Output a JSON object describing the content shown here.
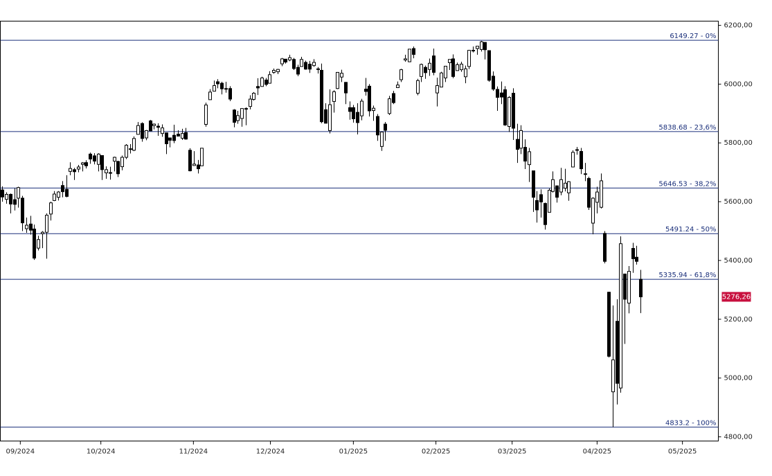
{
  "chart_data": {
    "type": "candlestick",
    "ylim": [
      4785.71,
      6214.29
    ],
    "yticks": [
      {
        "value": 6200,
        "label": "6200,00"
      },
      {
        "value": 6000,
        "label": "6000,00"
      },
      {
        "value": 5800,
        "label": "5800,00"
      },
      {
        "value": 5600,
        "label": "5600,00"
      },
      {
        "value": 5400,
        "label": "5400,00"
      },
      {
        "value": 5200,
        "label": "5200,00"
      },
      {
        "value": 5000,
        "label": "5000,00"
      },
      {
        "value": 4800,
        "label": "4800,00"
      }
    ],
    "xlim": [
      -0.5,
      179.5
    ],
    "xticks": [
      {
        "value": 4.5,
        "label": "09/2024"
      },
      {
        "value": 24.7,
        "label": "10/2024"
      },
      {
        "value": 47.9,
        "label": "11/2024"
      },
      {
        "value": 67.2,
        "label": "12/2024"
      },
      {
        "value": 88.0,
        "label": "01/2025"
      },
      {
        "value": 108.7,
        "label": "02/2025"
      },
      {
        "value": 127.8,
        "label": "03/2025"
      },
      {
        "value": 149.1,
        "label": "04/2025"
      },
      {
        "value": 170.5,
        "label": "05/2025"
      }
    ],
    "levels": [
      {
        "value": 6149.27,
        "label": "6149.27 - 0%"
      },
      {
        "value": 5838.68,
        "label": "5838.68 - 23,6%"
      },
      {
        "value": 5646.53,
        "label": "5646.53 - 38,2%"
      },
      {
        "value": 5491.24,
        "label": "5491.24 - 50%"
      },
      {
        "value": 5335.94,
        "label": "5335.94 - 61,8%"
      },
      {
        "value": 4833.2,
        "label": "4833.2 - 100%"
      }
    ],
    "level_color": "#1a2f7a",
    "up_color": "#ffffff",
    "down_color": "#000000",
    "last_price_color": "#c8103e",
    "last_price_label": "5276,26",
    "ohlc": [
      [
        5640,
        5652,
        5600,
        5616
      ],
      [
        5608,
        5632,
        5593,
        5625
      ],
      [
        5625,
        5628,
        5560,
        5592
      ],
      [
        5607,
        5646,
        5570,
        5591
      ],
      [
        5612,
        5651,
        5580,
        5648
      ],
      [
        5612,
        5620,
        5500,
        5528
      ],
      [
        5508,
        5546,
        5494,
        5520
      ],
      [
        5524,
        5552,
        5488,
        5503
      ],
      [
        5507,
        5522,
        5402,
        5408
      ],
      [
        5442,
        5484,
        5434,
        5471
      ],
      [
        5491,
        5500,
        5442,
        5496
      ],
      [
        5496,
        5560,
        5406,
        5554
      ],
      [
        5558,
        5600,
        5536,
        5596
      ],
      [
        5604,
        5636,
        5602,
        5626
      ],
      [
        5615,
        5636,
        5604,
        5633
      ],
      [
        5655,
        5670,
        5615,
        5634
      ],
      [
        5642,
        5690,
        5615,
        5618
      ],
      [
        5703,
        5734,
        5690,
        5713
      ],
      [
        5709,
        5715,
        5674,
        5702
      ],
      [
        5711,
        5725,
        5700,
        5718
      ],
      [
        5727,
        5735,
        5703,
        5732
      ],
      [
        5733,
        5741,
        5713,
        5722
      ],
      [
        5762,
        5767,
        5729,
        5745
      ],
      [
        5756,
        5765,
        5727,
        5738
      ],
      [
        5727,
        5765,
        5703,
        5762
      ],
      [
        5757,
        5758,
        5674,
        5709
      ],
      [
        5698,
        5720,
        5678,
        5709
      ],
      [
        5698,
        5719,
        5675,
        5699
      ],
      [
        5738,
        5753,
        5703,
        5751
      ],
      [
        5737,
        5739,
        5684,
        5695
      ],
      [
        5719,
        5757,
        5707,
        5751
      ],
      [
        5751,
        5796,
        5745,
        5792
      ],
      [
        5778,
        5796,
        5764,
        5780
      ],
      [
        5775,
        5822,
        5772,
        5815
      ],
      [
        5829,
        5871,
        5829,
        5859
      ],
      [
        5866,
        5870,
        5804,
        5815
      ],
      [
        5817,
        5844,
        5809,
        5842
      ],
      [
        5875,
        5878,
        5840,
        5841
      ],
      [
        5859,
        5866,
        5846,
        5864
      ],
      [
        5857,
        5867,
        5824,
        5853
      ],
      [
        5832,
        5863,
        5821,
        5851
      ],
      [
        5834,
        5835,
        5762,
        5797
      ],
      [
        5817,
        5817,
        5785,
        5809
      ],
      [
        5826,
        5862,
        5799,
        5808
      ],
      [
        5830,
        5843,
        5823,
        5823
      ],
      [
        5816,
        5848,
        5810,
        5832
      ],
      [
        5835,
        5851,
        5811,
        5813
      ],
      [
        5775,
        5782,
        5703,
        5705
      ],
      [
        5723,
        5772,
        5723,
        5728
      ],
      [
        5725,
        5742,
        5696,
        5712
      ],
      [
        5722,
        5783,
        5722,
        5782
      ],
      [
        5863,
        5937,
        5855,
        5929
      ],
      [
        5947,
        5983,
        5947,
        5973
      ],
      [
        5976,
        6012,
        5976,
        5995
      ],
      [
        6008,
        6017,
        5986,
        6001
      ],
      [
        6003,
        6008,
        5965,
        5984
      ],
      [
        5985,
        6008,
        5971,
        5985
      ],
      [
        5985,
        5993,
        5942,
        5949
      ],
      [
        5912,
        5915,
        5853,
        5870
      ],
      [
        5876,
        5909,
        5865,
        5893
      ],
      [
        5883,
        5917,
        5855,
        5917
      ],
      [
        5917,
        5921,
        5860,
        5917
      ],
      [
        5924,
        5962,
        5914,
        5949
      ],
      [
        5948,
        5973,
        5944,
        5969
      ],
      [
        5992,
        6020,
        5963,
        5987
      ],
      [
        5992,
        6025,
        5992,
        6021
      ],
      [
        6014,
        6021,
        5993,
        5999
      ],
      [
        6003,
        6044,
        6003,
        6032
      ],
      [
        6040,
        6053,
        6035,
        6047
      ],
      [
        6042,
        6052,
        6034,
        6050
      ],
      [
        6069,
        6089,
        6061,
        6086
      ],
      [
        6085,
        6085,
        6070,
        6075
      ],
      [
        6082,
        6100,
        6078,
        6090
      ],
      [
        6084,
        6089,
        6048,
        6053
      ],
      [
        6057,
        6066,
        6027,
        6034
      ],
      [
        6060,
        6093,
        6061,
        6084
      ],
      [
        6074,
        6080,
        6049,
        6051
      ],
      [
        6068,
        6079,
        6038,
        6051
      ],
      [
        6063,
        6085,
        6059,
        6074
      ],
      [
        6052,
        6058,
        6036,
        6050
      ],
      [
        6047,
        6070,
        5867,
        5872
      ],
      [
        5913,
        5935,
        5866,
        5867
      ],
      [
        5842,
        5982,
        5832,
        5930
      ],
      [
        5941,
        5979,
        5903,
        5974
      ],
      [
        5985,
        6041,
        5983,
        6040
      ],
      [
        6024,
        6049,
        6007,
        6037
      ],
      [
        6006,
        6007,
        5932,
        5970
      ],
      [
        5920,
        5941,
        5879,
        5907
      ],
      [
        5920,
        5929,
        5869,
        5882
      ],
      [
        5904,
        5935,
        5829,
        5869
      ],
      [
        5892,
        5950,
        5877,
        5942
      ],
      [
        5983,
        6021,
        5961,
        5975
      ],
      [
        5993,
        6000,
        5890,
        5909
      ],
      [
        5910,
        5927,
        5875,
        5918
      ],
      [
        5890,
        5898,
        5807,
        5827
      ],
      [
        5788,
        5837,
        5773,
        5837
      ],
      [
        5864,
        5871,
        5807,
        5843
      ],
      [
        5900,
        5960,
        5895,
        5950
      ],
      [
        5968,
        5977,
        5932,
        5937
      ],
      [
        5988,
        6009,
        5988,
        5997
      ],
      [
        6015,
        6052,
        6007,
        6049
      ],
      [
        6082,
        6100,
        6076,
        6086
      ],
      [
        6076,
        6119,
        6075,
        6119
      ],
      [
        6121,
        6128,
        6088,
        6101
      ],
      [
        5969,
        6018,
        5962,
        6012
      ],
      [
        6026,
        6070,
        6007,
        6067
      ],
      [
        6057,
        6063,
        6018,
        6039
      ],
      [
        6050,
        6087,
        6028,
        6071
      ],
      [
        6096,
        6121,
        6030,
        6040
      ],
      [
        5970,
        6022,
        5924,
        5995
      ],
      [
        5990,
        6042,
        5990,
        6038
      ],
      [
        6021,
        6062,
        6007,
        6061
      ],
      [
        6073,
        6084,
        6048,
        6084
      ],
      [
        6086,
        6101,
        6020,
        6026
      ],
      [
        6046,
        6073,
        6046,
        6066
      ],
      [
        6049,
        6076,
        6042,
        6068
      ],
      [
        6025,
        6063,
        6003,
        6052
      ],
      [
        6060,
        6116,
        6051,
        6115
      ],
      [
        6115,
        6128,
        6108,
        6114
      ],
      [
        6121,
        6129,
        6100,
        6129
      ],
      [
        6118,
        6147,
        6111,
        6144
      ],
      [
        6142,
        6143,
        6084,
        6117
      ],
      [
        6114,
        6115,
        6008,
        6013
      ],
      [
        6027,
        6043,
        5977,
        5983
      ],
      [
        5982,
        5992,
        5909,
        5955
      ],
      [
        5970,
        6009,
        5932,
        5956
      ],
      [
        5981,
        5993,
        5858,
        5861
      ],
      [
        5856,
        5959,
        5837,
        5955
      ],
      [
        5969,
        5986,
        5810,
        5850
      ],
      [
        5812,
        5865,
        5732,
        5778
      ],
      [
        5782,
        5860,
        5762,
        5842
      ],
      [
        5785,
        5812,
        5711,
        5738
      ],
      [
        5726,
        5783,
        5667,
        5770
      ],
      [
        5705,
        5705,
        5565,
        5615
      ],
      [
        5604,
        5636,
        5529,
        5572
      ],
      [
        5624,
        5642,
        5546,
        5599
      ],
      [
        5594,
        5597,
        5505,
        5522
      ],
      [
        5564,
        5645,
        5564,
        5639
      ],
      [
        5635,
        5703,
        5631,
        5675
      ],
      [
        5654,
        5654,
        5597,
        5615
      ],
      [
        5633,
        5715,
        5622,
        5675
      ],
      [
        5646,
        5712,
        5635,
        5663
      ],
      [
        5630,
        5670,
        5603,
        5668
      ],
      [
        5718,
        5775,
        5718,
        5768
      ],
      [
        5775,
        5786,
        5760,
        5777
      ],
      [
        5771,
        5783,
        5694,
        5712
      ],
      [
        5695,
        5732,
        5670,
        5693
      ],
      [
        5679,
        5685,
        5572,
        5581
      ],
      [
        5527,
        5615,
        5489,
        5612
      ],
      [
        5598,
        5651,
        5560,
        5633
      ],
      [
        5581,
        5696,
        5577,
        5671
      ],
      [
        5492,
        5500,
        5390,
        5397
      ],
      [
        5292,
        5293,
        5070,
        5074
      ],
      [
        4953,
        5247,
        4833,
        5062
      ],
      [
        5193,
        5268,
        4910,
        4982
      ],
      [
        4966,
        5482,
        4950,
        5457
      ],
      [
        5354,
        5354,
        5116,
        5268
      ],
      [
        5255,
        5381,
        5220,
        5363
      ],
      [
        5441,
        5460,
        5358,
        5406
      ],
      [
        5411,
        5450,
        5386,
        5397
      ],
      [
        5336,
        5368,
        5221,
        5276.26
      ]
    ]
  }
}
